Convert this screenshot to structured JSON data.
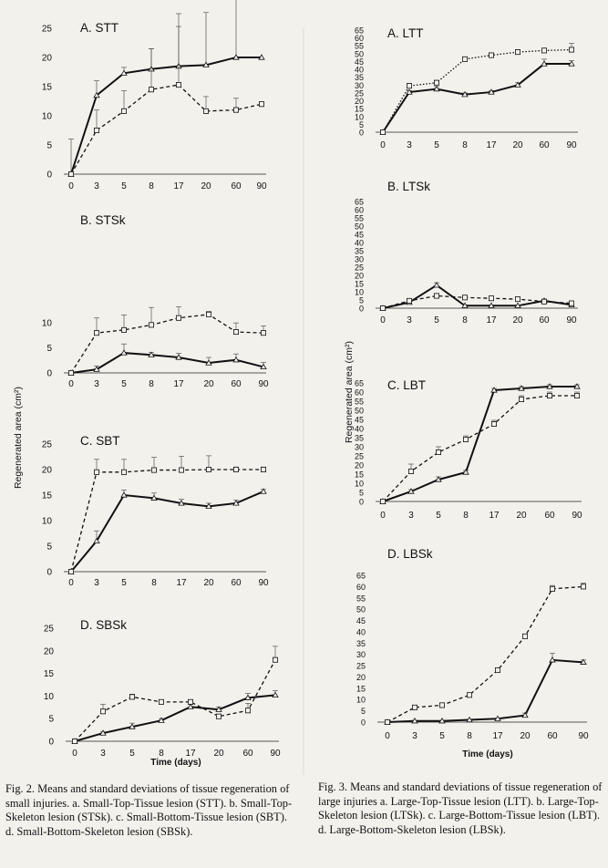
{
  "figures": {
    "fig2": {
      "ylabel": "Regenerated area (cm²)",
      "xlabel": "Time (days)",
      "caption": "Fig. 2. Means and standard deviations of tissue regeneration of small injuries. a. Small-Top-Tissue lesion (STT). b. Small-Top-Skeleton lesion (STSk). c. Small-Bottom-Tissue lesion (SBT). d. Small-Bottom-Skeleton lesion (SBSk)."
    },
    "fig3": {
      "ylabel": "Regenerated area (cm²)",
      "xlabel": "Time (days)",
      "caption": "Fig. 3. Means and standard deviations of tissue regeneration of large injuries a. Large-Top-Tissue lesion (LTT). b. Large-Top-Skeleton lesion (LTSk). c. Large-Bottom-Tissue lesion (LBT). d. Large-Bottom-Skeleton lesion (LBSk)."
    }
  },
  "chart_data": [
    {
      "type": "line",
      "title": "A. STT",
      "categories": [
        "0",
        "3",
        "5",
        "8",
        "17",
        "20",
        "60",
        "90"
      ],
      "ylim": [
        0,
        25
      ],
      "yticks": [
        0,
        5,
        10,
        15,
        20,
        25
      ],
      "series": [
        {
          "style": "solid",
          "marker": "triangle",
          "values": [
            0,
            13.5,
            17.3,
            18,
            18.5,
            18.7,
            20,
            20
          ],
          "err": [
            6,
            2.5,
            1,
            3.5,
            9,
            9,
            11,
            0
          ]
        },
        {
          "style": "dashed",
          "marker": "square",
          "values": [
            0,
            7.5,
            10.8,
            14.5,
            15.3,
            10.8,
            11,
            12
          ],
          "err": [
            0,
            3.5,
            3.5,
            7,
            10,
            2.5,
            2,
            0
          ]
        }
      ]
    },
    {
      "type": "line",
      "title": "B. STSk",
      "categories": [
        "0",
        "3",
        "5",
        "8",
        "17",
        "20",
        "60",
        "90"
      ],
      "ylim": [
        0,
        25
      ],
      "yticks": [
        0,
        5,
        10
      ],
      "series": [
        {
          "style": "solid",
          "marker": "triangle",
          "values": [
            0,
            0.7,
            4,
            3.6,
            3.1,
            2,
            2.6,
            1.2
          ],
          "err": [
            0.3,
            0.7,
            1.8,
            0.5,
            0.8,
            1.1,
            1.2,
            0.9
          ]
        },
        {
          "style": "dashed",
          "marker": "square",
          "values": [
            0,
            8,
            8.6,
            9.6,
            11,
            11.7,
            8.2,
            8
          ],
          "err": [
            0,
            3,
            3,
            3.5,
            2.2,
            0.6,
            1.8,
            1.4
          ]
        }
      ]
    },
    {
      "type": "line",
      "title": "C. SBT",
      "categories": [
        "0",
        "3",
        "5",
        "8",
        "17",
        "20",
        "60",
        "90"
      ],
      "ylim": [
        0,
        25
      ],
      "yticks": [
        0,
        5,
        10,
        15,
        20,
        25
      ],
      "series": [
        {
          "style": "solid",
          "marker": "triangle",
          "values": [
            0,
            6,
            15,
            14.4,
            13.4,
            12.8,
            13.4,
            15.7
          ],
          "err": [
            0,
            2,
            1,
            1,
            0.8,
            0.6,
            0.6,
            0.4
          ]
        },
        {
          "style": "dashed",
          "marker": "square",
          "values": [
            0,
            19.5,
            19.5,
            19.9,
            19.9,
            20,
            20,
            20
          ],
          "err": [
            0,
            2.5,
            2.5,
            2.5,
            2.7,
            2.7,
            0.5,
            0.5
          ]
        }
      ]
    },
    {
      "type": "line",
      "title": "D. SBSk",
      "categories": [
        "0",
        "3",
        "5",
        "8",
        "17",
        "20",
        "60",
        "90"
      ],
      "ylim": [
        0,
        25
      ],
      "yticks": [
        0,
        5,
        10,
        15,
        20,
        25
      ],
      "series": [
        {
          "style": "solid",
          "marker": "triangle",
          "values": [
            0,
            1.8,
            3.2,
            4.6,
            7.6,
            7,
            9.6,
            10.2
          ],
          "err": [
            0,
            0.3,
            0.8,
            0.4,
            0.6,
            0.6,
            1,
            1
          ]
        },
        {
          "style": "dashed",
          "marker": "square",
          "values": [
            0,
            6.6,
            9.8,
            8.7,
            8.7,
            5.5,
            6.8,
            18
          ],
          "err": [
            0,
            1.6,
            0.6,
            0.4,
            0.4,
            0.4,
            1.6,
            3
          ]
        }
      ]
    },
    {
      "type": "line",
      "title": "A. LTT",
      "categories": [
        "0",
        "3",
        "5",
        "8",
        "17",
        "20",
        "60",
        "90"
      ],
      "ylim": [
        0,
        65
      ],
      "yticks": [
        0,
        5,
        10,
        15,
        20,
        25,
        30,
        35,
        40,
        45,
        50,
        55,
        60,
        65
      ],
      "series": [
        {
          "style": "solid",
          "marker": "triangle",
          "values": [
            0,
            25.5,
            27.5,
            24,
            25.5,
            30,
            43.5,
            43.5
          ],
          "err": [
            0,
            1,
            1.5,
            1,
            1,
            1.5,
            3,
            2
          ]
        },
        {
          "style": "dotted",
          "marker": "square",
          "values": [
            0,
            29.5,
            31.5,
            46.5,
            49,
            51,
            52,
            52.5
          ],
          "err": [
            0,
            1.5,
            1.5,
            1.5,
            1.5,
            1.5,
            1.5,
            4
          ]
        }
      ]
    },
    {
      "type": "line",
      "title": "B. LTSk",
      "categories": [
        "0",
        "3",
        "5",
        "8",
        "17",
        "20",
        "60",
        "90"
      ],
      "ylim": [
        0,
        65
      ],
      "yticks": [
        0,
        5,
        10,
        15,
        20,
        25,
        30,
        35,
        40,
        45,
        50,
        55,
        60,
        65
      ],
      "series": [
        {
          "style": "solid",
          "marker": "triangle",
          "values": [
            0,
            3.5,
            14,
            1.5,
            1.5,
            1.5,
            4.5,
            2
          ],
          "err": [
            0,
            1,
            1.5,
            0.5,
            0.5,
            0.5,
            1,
            0.5
          ]
        },
        {
          "style": "dashed",
          "marker": "square",
          "values": [
            0,
            4.5,
            7.5,
            6.5,
            6,
            5.5,
            4,
            3
          ],
          "err": [
            0,
            1,
            1.5,
            1,
            1,
            1,
            1,
            1
          ]
        }
      ]
    },
    {
      "type": "line",
      "title": "C. LBT",
      "categories": [
        "0",
        "3",
        "5",
        "8",
        "17",
        "20",
        "60",
        "90"
      ],
      "ylim": [
        0,
        65
      ],
      "yticks": [
        0,
        5,
        10,
        15,
        20,
        25,
        30,
        35,
        40,
        45,
        50,
        55,
        60,
        65
      ],
      "series": [
        {
          "style": "solid",
          "marker": "triangle",
          "values": [
            0,
            5.5,
            12,
            16,
            61,
            62,
            63,
            63
          ],
          "err": [
            0,
            1,
            1.5,
            1,
            1,
            1,
            1,
            1
          ]
        },
        {
          "style": "dashed",
          "marker": "square",
          "values": [
            0,
            16.5,
            27,
            34,
            42.5,
            56,
            58,
            58
          ],
          "err": [
            0,
            4,
            3,
            2,
            2,
            2,
            2,
            2
          ]
        }
      ]
    },
    {
      "type": "line",
      "title": "D. LBSk",
      "categories": [
        "0",
        "3",
        "5",
        "8",
        "17",
        "20",
        "60",
        "90"
      ],
      "ylim": [
        0,
        65
      ],
      "yticks": [
        0,
        5,
        10,
        15,
        20,
        25,
        30,
        35,
        40,
        45,
        50,
        55,
        60,
        65
      ],
      "series": [
        {
          "style": "solid",
          "marker": "triangle",
          "values": [
            0,
            0.5,
            0.5,
            1,
            1.5,
            3,
            27.5,
            26.5
          ],
          "err": [
            0,
            0.3,
            0.3,
            0.3,
            0.3,
            1,
            3,
            1
          ]
        },
        {
          "style": "dashed",
          "marker": "square",
          "values": [
            0,
            6.5,
            7.5,
            12,
            23,
            38,
            59,
            60
          ],
          "err": [
            0,
            0.5,
            0.5,
            0.5,
            1,
            1,
            1.5,
            1.5
          ]
        }
      ]
    }
  ]
}
